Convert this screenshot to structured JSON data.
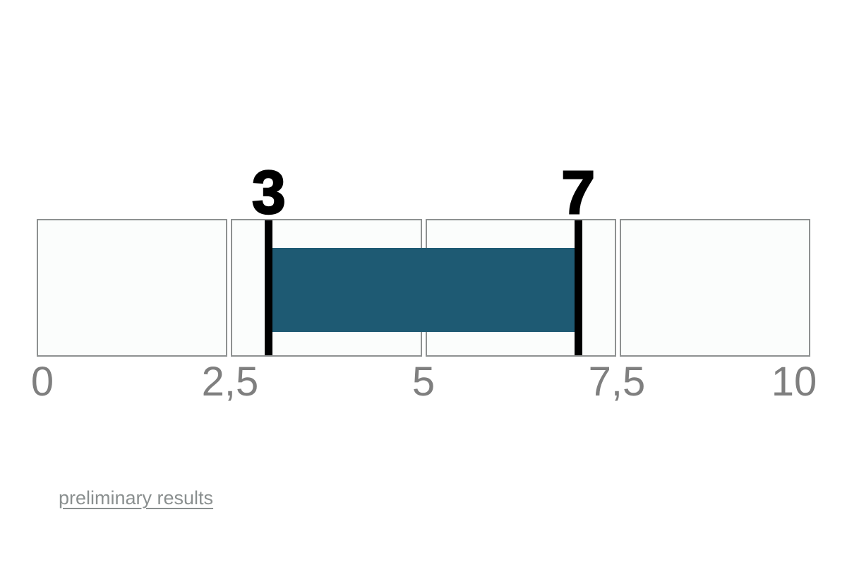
{
  "page": {
    "background": "#ffffff"
  },
  "chart_data": {
    "type": "bar",
    "subtype": "range-bullet",
    "title": "",
    "orientation": "horizontal",
    "axis": {
      "min": 0,
      "max": 10,
      "segments": 4,
      "ticks": [
        {
          "value": 0,
          "label": "0"
        },
        {
          "value": 2.5,
          "label": "2,5"
        },
        {
          "value": 5,
          "label": "5"
        },
        {
          "value": 7.5,
          "label": "7,5"
        },
        {
          "value": 10,
          "label": "10"
        }
      ]
    },
    "range_bar": {
      "start": 3,
      "end": 7,
      "start_label": "3",
      "end_label": "7",
      "color": "#1e5a73"
    },
    "marker_color": "#000000",
    "value_label_color": "#000000",
    "cell_background": "#fbfdfc",
    "cell_border_color": "#8e9191",
    "tick_label_color": "#7f7f7f",
    "legend": "none",
    "grid": "off"
  },
  "footer": {
    "link_label": "preliminary results",
    "link_color": "#8a8f8f"
  }
}
